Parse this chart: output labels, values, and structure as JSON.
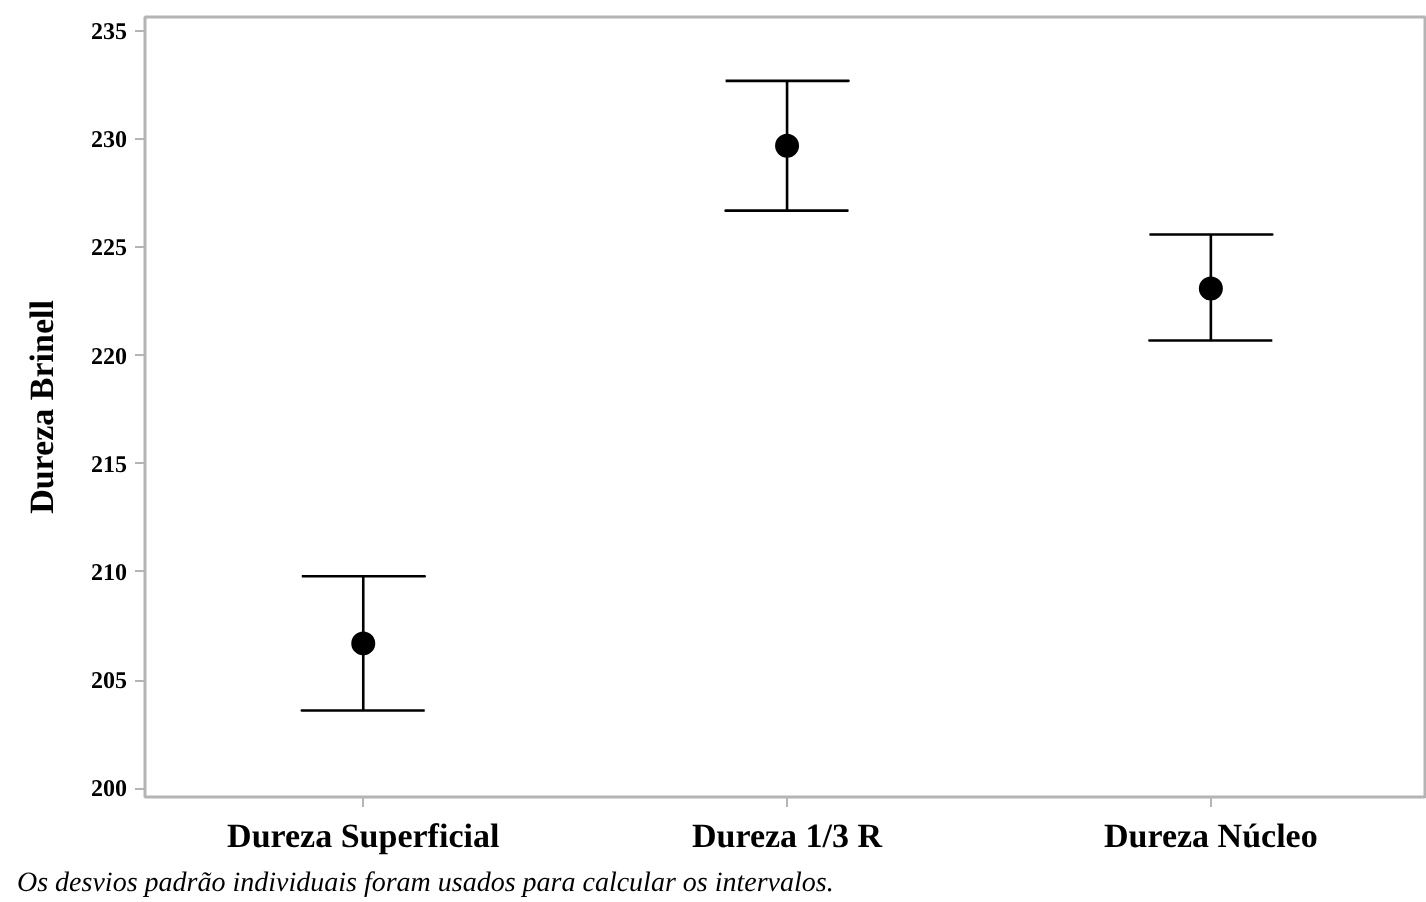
{
  "chart_data": {
    "type": "scatter",
    "ylabel": "Dureza Brinell",
    "categories": [
      "Dureza Superficial",
      "Dureza 1/3 R",
      "Dureza Núcleo"
    ],
    "values": [
      206.7,
      229.7,
      223.1
    ],
    "errors": [
      [
        203.6,
        209.8
      ],
      [
        226.7,
        232.7
      ],
      [
        220.7,
        225.6
      ]
    ],
    "color": "#000000",
    "marker": "circle",
    "ylim": [
      199.6,
      235.65
    ],
    "yticks": [
      200,
      205,
      210,
      215,
      220,
      225,
      230,
      235
    ],
    "annotations": [
      "Os desvios padrão individuais foram usados para calcular os intervalos."
    ]
  }
}
